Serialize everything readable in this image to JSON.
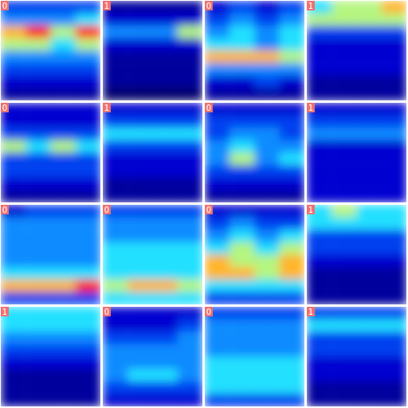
{
  "chart_data": [
    {
      "type": "heatmap",
      "title": "0",
      "zlim": [
        0,
        10
      ],
      "values": [
        [
          3,
          3,
          3,
          3
        ],
        [
          4,
          4,
          4,
          5
        ],
        [
          7,
          8,
          6,
          8
        ],
        [
          6,
          6,
          5,
          6
        ],
        [
          4,
          4,
          4,
          4
        ],
        [
          3,
          3,
          3,
          3
        ],
        [
          2,
          2,
          2,
          2
        ],
        [
          1,
          1,
          1,
          1
        ]
      ]
    },
    {
      "type": "heatmap",
      "title": "1",
      "zlim": [
        0,
        10
      ],
      "values": [
        [
          1,
          1,
          1,
          1
        ],
        [
          2,
          2,
          2,
          2
        ],
        [
          4,
          4,
          4,
          6
        ],
        [
          2,
          2,
          2,
          2
        ],
        [
          1,
          1,
          1,
          1
        ],
        [
          1,
          1,
          1,
          1
        ],
        [
          1,
          1,
          1,
          1
        ],
        [
          0,
          0,
          0,
          0
        ]
      ]
    },
    {
      "type": "heatmap",
      "title": "0",
      "zlim": [
        0,
        10
      ],
      "values": [
        [
          2,
          3,
          2,
          3
        ],
        [
          3,
          4,
          3,
          4
        ],
        [
          4,
          5,
          4,
          5
        ],
        [
          5,
          5,
          4,
          5
        ],
        [
          7,
          7,
          7,
          6
        ],
        [
          4,
          4,
          4,
          4
        ],
        [
          2,
          2,
          3,
          2
        ],
        [
          1,
          1,
          1,
          1
        ]
      ]
    },
    {
      "type": "heatmap",
      "title": "1",
      "zlim": [
        0,
        10
      ],
      "values": [
        [
          5,
          6,
          6,
          7
        ],
        [
          6,
          6,
          6,
          6
        ],
        [
          3,
          3,
          3,
          3
        ],
        [
          2,
          2,
          2,
          2
        ],
        [
          2,
          2,
          2,
          2
        ],
        [
          2,
          2,
          2,
          2
        ],
        [
          1,
          1,
          1,
          1
        ],
        [
          1,
          1,
          1,
          1
        ]
      ]
    },
    {
      "type": "heatmap",
      "title": "0",
      "zlim": [
        0,
        10
      ],
      "values": [
        [
          2,
          2,
          2,
          2
        ],
        [
          2,
          2,
          2,
          2
        ],
        [
          3,
          3,
          3,
          3
        ],
        [
          6,
          5,
          6,
          5
        ],
        [
          3,
          3,
          3,
          3
        ],
        [
          3,
          3,
          3,
          3
        ],
        [
          2,
          2,
          2,
          2
        ],
        [
          1,
          1,
          1,
          1
        ]
      ]
    },
    {
      "type": "heatmap",
      "title": "1",
      "zlim": [
        0,
        10
      ],
      "values": [
        [
          2,
          2,
          2,
          2
        ],
        [
          3,
          3,
          3,
          3
        ],
        [
          5,
          5,
          5,
          5
        ],
        [
          3,
          3,
          3,
          3
        ],
        [
          2,
          2,
          2,
          2
        ],
        [
          2,
          2,
          2,
          2
        ],
        [
          1,
          1,
          1,
          1
        ],
        [
          1,
          1,
          1,
          1
        ]
      ]
    },
    {
      "type": "heatmap",
      "title": "0",
      "zlim": [
        0,
        10
      ],
      "values": [
        [
          2,
          2,
          2,
          2
        ],
        [
          3,
          3,
          3,
          3
        ],
        [
          3,
          4,
          4,
          3
        ],
        [
          4,
          5,
          4,
          4
        ],
        [
          4,
          6,
          4,
          5
        ],
        [
          3,
          3,
          3,
          3
        ],
        [
          2,
          2,
          2,
          2
        ],
        [
          1,
          1,
          1,
          1
        ]
      ]
    },
    {
      "type": "heatmap",
      "title": "1",
      "zlim": [
        0,
        10
      ],
      "values": [
        [
          2,
          2,
          2,
          2
        ],
        [
          3,
          3,
          3,
          3
        ],
        [
          4,
          4,
          4,
          4
        ],
        [
          2,
          2,
          2,
          2
        ],
        [
          2,
          2,
          2,
          2
        ],
        [
          2,
          2,
          2,
          2
        ],
        [
          2,
          2,
          2,
          2
        ],
        [
          2,
          2,
          2,
          2
        ]
      ]
    },
    {
      "type": "heatmap",
      "title": "0",
      "zlim": [
        0,
        10
      ],
      "values": [
        [
          2,
          3,
          3,
          3
        ],
        [
          4,
          4,
          4,
          4
        ],
        [
          4,
          4,
          4,
          4
        ],
        [
          4,
          4,
          4,
          4
        ],
        [
          4,
          4,
          4,
          4
        ],
        [
          5,
          5,
          5,
          5
        ],
        [
          7,
          7,
          7,
          8
        ],
        [
          3,
          3,
          3,
          3
        ]
      ]
    },
    {
      "type": "heatmap",
      "title": "0",
      "zlim": [
        0,
        10
      ],
      "values": [
        [
          3,
          3,
          3,
          3
        ],
        [
          4,
          4,
          4,
          4
        ],
        [
          4,
          4,
          4,
          4
        ],
        [
          5,
          5,
          5,
          5
        ],
        [
          5,
          5,
          5,
          5
        ],
        [
          5,
          5,
          5,
          5
        ],
        [
          6,
          7,
          7,
          6
        ],
        [
          5,
          5,
          5,
          5
        ]
      ]
    },
    {
      "type": "heatmap",
      "title": "0",
      "zlim": [
        0,
        10
      ],
      "values": [
        [
          2,
          2,
          2,
          2
        ],
        [
          3,
          4,
          3,
          3
        ],
        [
          4,
          5,
          4,
          5
        ],
        [
          5,
          6,
          5,
          6
        ],
        [
          7,
          6,
          6,
          7
        ],
        [
          7,
          7,
          6,
          7
        ],
        [
          5,
          5,
          5,
          5
        ],
        [
          3,
          3,
          3,
          3
        ]
      ]
    },
    {
      "type": "heatmap",
      "title": "1",
      "zlim": [
        0,
        10
      ],
      "values": [
        [
          5,
          6,
          5,
          5
        ],
        [
          5,
          5,
          5,
          5
        ],
        [
          3,
          3,
          3,
          3
        ],
        [
          3,
          3,
          3,
          3
        ],
        [
          2,
          2,
          2,
          2
        ],
        [
          1,
          1,
          1,
          1
        ],
        [
          1,
          1,
          1,
          1
        ],
        [
          1,
          1,
          1,
          1
        ]
      ]
    },
    {
      "type": "heatmap",
      "title": "1",
      "zlim": [
        0,
        10
      ],
      "values": [
        [
          5,
          5,
          5,
          5
        ],
        [
          5,
          5,
          5,
          5
        ],
        [
          4,
          4,
          4,
          4
        ],
        [
          3,
          3,
          3,
          3
        ],
        [
          2,
          2,
          2,
          2
        ],
        [
          1,
          1,
          1,
          1
        ],
        [
          1,
          1,
          1,
          1
        ],
        [
          1,
          1,
          1,
          1
        ]
      ]
    },
    {
      "type": "heatmap",
      "title": "0",
      "zlim": [
        0,
        10
      ],
      "values": [
        [
          2,
          2,
          2,
          2
        ],
        [
          2,
          2,
          2,
          3
        ],
        [
          3,
          3,
          3,
          4
        ],
        [
          4,
          4,
          4,
          4
        ],
        [
          4,
          4,
          4,
          4
        ],
        [
          4,
          5,
          5,
          4
        ],
        [
          3,
          3,
          3,
          3
        ],
        [
          2,
          2,
          2,
          2
        ]
      ]
    },
    {
      "type": "heatmap",
      "title": "0",
      "zlim": [
        0,
        10
      ],
      "values": [
        [
          3,
          3,
          3,
          3
        ],
        [
          4,
          4,
          4,
          4
        ],
        [
          4,
          4,
          4,
          4
        ],
        [
          4,
          4,
          4,
          4
        ],
        [
          5,
          5,
          5,
          5
        ],
        [
          5,
          5,
          5,
          5
        ],
        [
          5,
          5,
          5,
          5
        ],
        [
          3,
          3,
          3,
          3
        ]
      ]
    },
    {
      "type": "heatmap",
      "title": "1",
      "zlim": [
        0,
        10
      ],
      "values": [
        [
          3,
          3,
          3,
          3
        ],
        [
          5,
          5,
          5,
          5
        ],
        [
          3,
          3,
          3,
          3
        ],
        [
          3,
          3,
          3,
          3
        ],
        [
          2,
          2,
          2,
          2
        ],
        [
          2,
          2,
          2,
          2
        ],
        [
          1,
          1,
          1,
          1
        ],
        [
          1,
          1,
          1,
          1
        ]
      ]
    }
  ]
}
